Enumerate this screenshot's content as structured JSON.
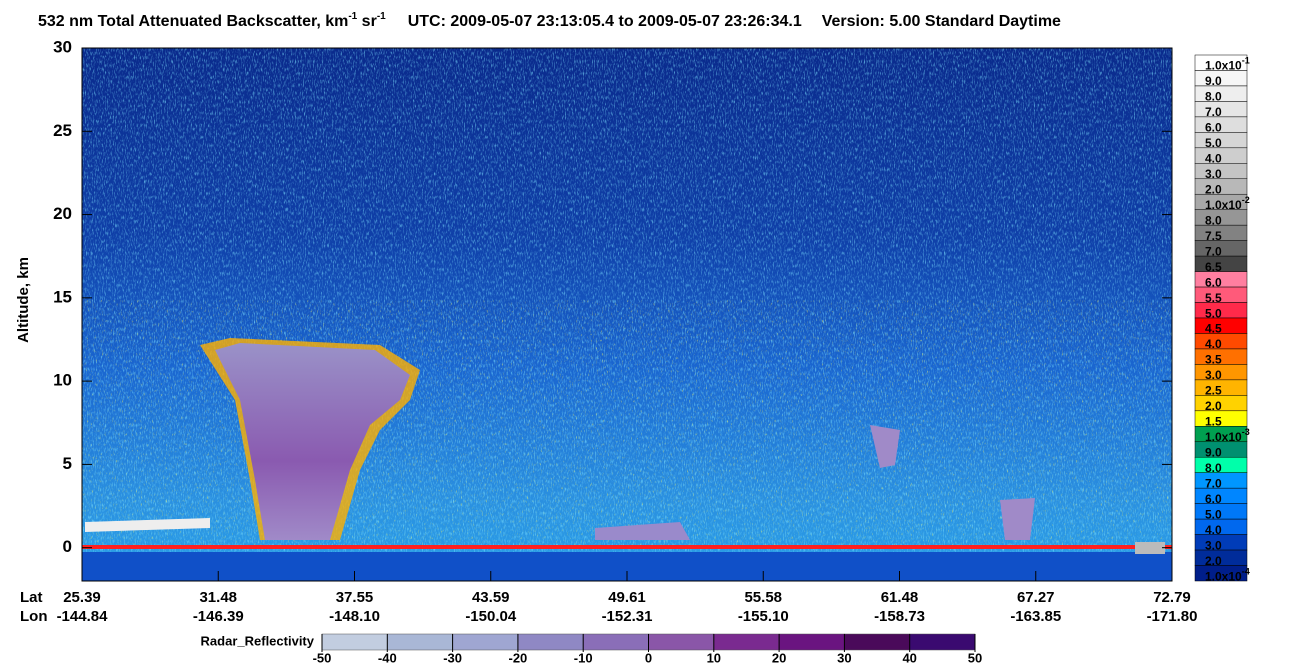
{
  "chart_data": {
    "type": "heatmap",
    "title": {
      "main": "532 nm Total Attenuated Backscatter, km",
      "sup1": "-1",
      "mid": " sr",
      "sup2": "-1",
      "utc": "UTC:  2009-05-07 23:13:05.4  to  2009-05-07 23:26:34.1",
      "version": "Version: 5.00  Standard  Daytime"
    },
    "y_label": "Altitude, km",
    "ylim": [
      -2,
      30
    ],
    "yticks": [
      0,
      5,
      10,
      15,
      20,
      25,
      30
    ],
    "x_row_labels": [
      "Lat",
      "Lon"
    ],
    "lat": [
      "25.39",
      "31.48",
      "37.55",
      "43.59",
      "49.61",
      "55.58",
      "61.48",
      "67.27",
      "72.79"
    ],
    "lon": [
      "-144.84",
      "-146.39",
      "-148.10",
      "-150.04",
      "-152.31",
      "-155.10",
      "-158.73",
      "-163.85",
      "-171.80"
    ],
    "colorbar": [
      {
        "label": "1.0x10",
        "sup": "-1",
        "color": "#ffffff"
      },
      {
        "label": "9.0",
        "color": "#f6f6f6"
      },
      {
        "label": "8.0",
        "color": "#eeeeee"
      },
      {
        "label": "7.0",
        "color": "#e6e6e6"
      },
      {
        "label": "6.0",
        "color": "#dedede"
      },
      {
        "label": "5.0",
        "color": "#d6d6d6"
      },
      {
        "label": "4.0",
        "color": "#cecece"
      },
      {
        "label": "3.0",
        "color": "#c4c4c4"
      },
      {
        "label": "2.0",
        "color": "#b8b8b8"
      },
      {
        "label": "1.0x10",
        "sup": "-2",
        "color": "#a8a8a8"
      },
      {
        "label": "8.0",
        "color": "#969696"
      },
      {
        "label": "7.5",
        "color": "#828282"
      },
      {
        "label": "7.0",
        "color": "#666666"
      },
      {
        "label": "6.5",
        "color": "#444444"
      },
      {
        "label": "6.0",
        "color": "#ff7fa0"
      },
      {
        "label": "5.5",
        "color": "#ff5a7a"
      },
      {
        "label": "5.0",
        "color": "#ff2a4a"
      },
      {
        "label": "4.5",
        "color": "#ff0000"
      },
      {
        "label": "4.0",
        "color": "#ff4a00"
      },
      {
        "label": "3.5",
        "color": "#ff7000"
      },
      {
        "label": "3.0",
        "color": "#ff9600"
      },
      {
        "label": "2.5",
        "color": "#ffb400"
      },
      {
        "label": "2.0",
        "color": "#ffd200"
      },
      {
        "label": "1.5",
        "color": "#ffff00"
      },
      {
        "label": "1.0x10",
        "sup": "-3",
        "color": "#00a050"
      },
      {
        "label": "9.0",
        "color": "#009070"
      },
      {
        "label": "8.0",
        "color": "#00ffaa"
      },
      {
        "label": "7.0",
        "color": "#0096ff"
      },
      {
        "label": "6.0",
        "color": "#0086ff"
      },
      {
        "label": "5.0",
        "color": "#0078f8"
      },
      {
        "label": "4.0",
        "color": "#0068ee"
      },
      {
        "label": "3.0",
        "color": "#003cb8"
      },
      {
        "label": "2.0",
        "color": "#002c9a"
      },
      {
        "label": "1.0x10",
        "sup": "-4",
        "color": "#001e8a"
      }
    ],
    "radar_colorbar": {
      "label": "Radar_Reflectivity",
      "ticks": [
        -50,
        -40,
        -30,
        -20,
        -10,
        0,
        10,
        20,
        30,
        40,
        50
      ],
      "colors": [
        "#c2cde0",
        "#a9b7d6",
        "#9fa6d2",
        "#8f88c4",
        "#8a6eb8",
        "#8a56a8",
        "#7a2a90",
        "#6a1480",
        "#4a0a5a",
        "#3a0a70"
      ]
    }
  }
}
